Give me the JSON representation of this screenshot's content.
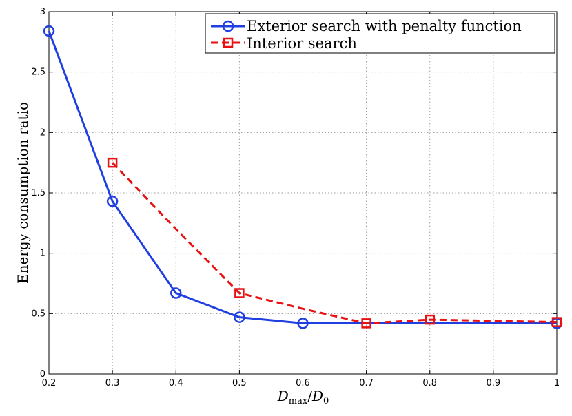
{
  "chart_data": {
    "type": "line",
    "title": "",
    "xlabel": "D_max/D_0",
    "xlabel_main": "D",
    "xlabel_sub1": "max",
    "xlabel_slash": "/",
    "xlabel_sub2": "0",
    "ylabel": "Energy consumption ratio",
    "xlim": [
      0.2,
      1
    ],
    "ylim": [
      0,
      3
    ],
    "xticks": [
      "0.2",
      "0.3",
      "0.4",
      "0.5",
      "0.6",
      "0.7",
      "0.8",
      "0.9",
      "1"
    ],
    "yticks": [
      "0",
      "0.5",
      "1",
      "1.5",
      "2",
      "2.5",
      "3"
    ],
    "grid": true,
    "legend_position": "top-right",
    "series": [
      {
        "name": "Exterior search with penalty function",
        "color": "#1f3fe0",
        "line_style": "solid",
        "marker": "circle",
        "x": [
          0.2,
          0.3,
          0.4,
          0.5,
          0.6,
          0.7,
          0.8,
          0.9,
          1.0
        ],
        "y": [
          2.84,
          1.43,
          0.67,
          0.47,
          0.42,
          0.42,
          0.42,
          0.42,
          0.42
        ],
        "marker_x": [
          0.2,
          0.3,
          0.4,
          0.5,
          0.6,
          1.0
        ],
        "marker_y": [
          2.84,
          1.43,
          0.67,
          0.47,
          0.42,
          0.42
        ]
      },
      {
        "name": "Interior search",
        "color": "#e81010",
        "line_style": "dashed",
        "marker": "square",
        "x": [
          0.3,
          0.4,
          0.5,
          0.6,
          0.7,
          0.8,
          0.9,
          1.0
        ],
        "y": [
          1.75,
          1.2,
          0.67,
          0.54,
          0.42,
          0.45,
          0.44,
          0.43
        ],
        "marker_x": [
          0.3,
          0.5,
          0.7,
          0.8,
          1.0
        ],
        "marker_y": [
          1.75,
          0.67,
          0.42,
          0.45,
          0.43
        ]
      }
    ]
  }
}
